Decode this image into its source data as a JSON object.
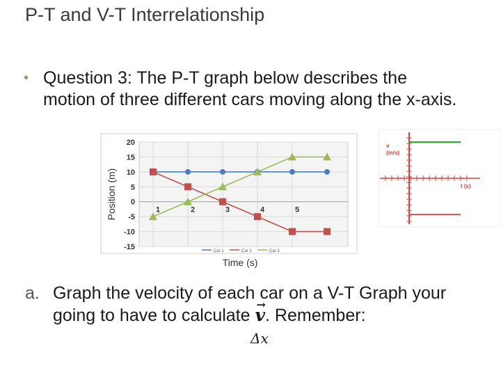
{
  "slide": {
    "title": "P-T and V-T Interrelationship",
    "bullet_symbol": "•",
    "question": "Question 3: The P-T graph below describes the motion of three different cars moving along the x-axis.",
    "sub_label": "a.",
    "sub_text_part1": "Graph the velocity of each car on a V-T Graph your going to have to calculate",
    "vector_symbol": "v",
    "sub_text_part2": ". Remember:",
    "delta_expr": "Δx"
  },
  "chart_data": [
    {
      "type": "line",
      "title": "",
      "xlabel": "Time (s)",
      "ylabel": "Position (m)",
      "xlim": [
        0.6,
        6.6
      ],
      "ylim": [
        -15,
        20
      ],
      "x_ticks": [
        1,
        2,
        3,
        4,
        5
      ],
      "y_ticks": [
        20,
        15,
        10,
        5,
        0,
        -5,
        -10,
        -15
      ],
      "grid": true,
      "legend": "bottom",
      "series": [
        {
          "name": "Car 1",
          "color": "#4a7ebb",
          "marker": "circle",
          "x": [
            1,
            2,
            3,
            4,
            5,
            6
          ],
          "y": [
            10,
            10,
            10,
            10,
            10,
            10
          ]
        },
        {
          "name": "Car 2",
          "color": "#c0504d",
          "marker": "square",
          "x": [
            1,
            2,
            3,
            4,
            5,
            6
          ],
          "y": [
            10,
            5,
            0,
            -5,
            -10,
            -10
          ]
        },
        {
          "name": "Car 3",
          "color": "#9bbb59",
          "marker": "triangle",
          "x": [
            1,
            2,
            3,
            4,
            5,
            6
          ],
          "y": [
            -5,
            0,
            5,
            10,
            15,
            15
          ]
        }
      ]
    },
    {
      "type": "line",
      "title": "",
      "ylabel": "v\n(m/s)",
      "xlabel": "t (s)",
      "series": [
        {
          "name": "",
          "color": "#22b022",
          "level": 1
        },
        {
          "name": "",
          "color": "#e05555",
          "level": -1
        }
      ]
    }
  ]
}
